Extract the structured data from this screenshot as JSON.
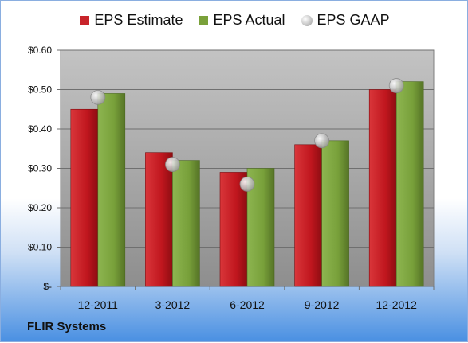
{
  "company": "FLIR Systems",
  "colors": {
    "estimate": "#c8242b",
    "actual": "#7aa13a",
    "gaap": "#c9c9c9"
  },
  "chart_data": {
    "type": "bar",
    "categories": [
      "12-2011",
      "3-2012",
      "6-2012",
      "9-2012",
      "12-2012"
    ],
    "series": [
      {
        "name": "EPS Estimate",
        "values": [
          0.45,
          0.34,
          0.29,
          0.36,
          0.5
        ]
      },
      {
        "name": "EPS Actual",
        "values": [
          0.49,
          0.32,
          0.3,
          0.37,
          0.52
        ]
      },
      {
        "name": "EPS GAAP",
        "type": "scatter",
        "values": [
          0.48,
          0.31,
          0.26,
          0.37,
          0.51
        ]
      }
    ],
    "ylim": [
      0,
      0.6
    ],
    "yticks": [
      0,
      0.1,
      0.2,
      0.3,
      0.4,
      0.5,
      0.6
    ],
    "ytick_labels": [
      "$-",
      "$0.10",
      "$0.20",
      "$0.30",
      "$0.40",
      "$0.50",
      "$0.60"
    ],
    "grid": true,
    "legend": "top"
  }
}
